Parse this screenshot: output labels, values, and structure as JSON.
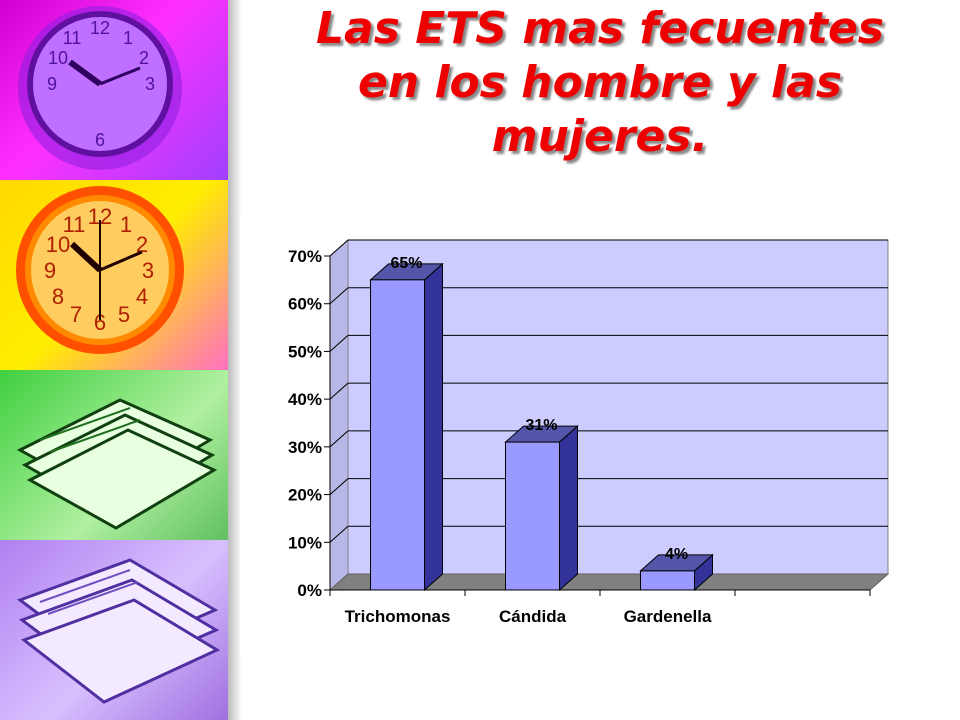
{
  "slide": {
    "title_lines": [
      "Las ETS mas fecuentes",
      "en los hombre y las",
      "mujeres."
    ]
  },
  "decor": {
    "left_strip_images": [
      "clock-icon",
      "clock-icon",
      "papers-icon",
      "papers-icon"
    ]
  },
  "chart_data": {
    "type": "bar",
    "categories": [
      "Trichomonas",
      "Cándida",
      "Gardenella"
    ],
    "values": [
      65,
      31,
      4
    ],
    "value_labels": [
      "65%",
      "31%",
      "4%"
    ],
    "ylim": [
      0,
      70
    ],
    "y_ticks": [
      "0%",
      "10%",
      "20%",
      "30%",
      "40%",
      "50%",
      "60%",
      "70%"
    ],
    "grid": true,
    "legend": "none",
    "colors": {
      "bar_front": "#9999ff",
      "bar_side": "#333399",
      "bar_top": "#5555aa",
      "wall": "#ccccff",
      "floor": "#808080"
    }
  }
}
